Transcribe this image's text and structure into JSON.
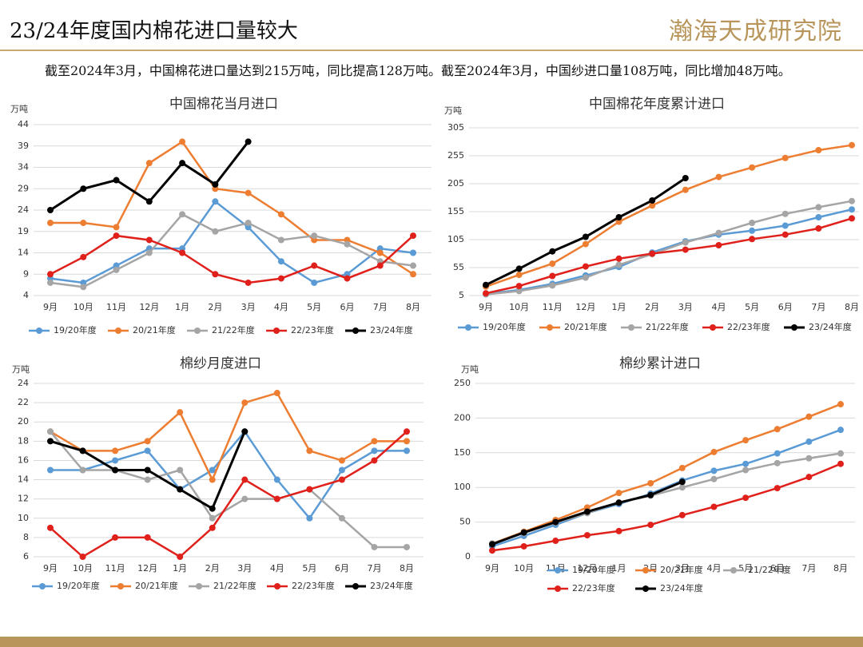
{
  "header": {
    "title": "23/24年度国内棉花进口量较大",
    "logo": "瀚海天成研究院",
    "text": "截至2024年3月，中国棉花进口量达到215万吨，同比提高128万吨。截至2024年3月，中国纱进口量108万吨，同比增加48万吨。"
  },
  "chart_data": [
    {
      "type": "line",
      "title": "中国棉花当月进口",
      "y_unit": "万吨",
      "grid": true,
      "legend": "bottom",
      "categories": [
        "9月",
        "10月",
        "11月",
        "12月",
        "1月",
        "2月",
        "3月",
        "4月",
        "5月",
        "6月",
        "7月",
        "8月"
      ],
      "ylim": [
        4,
        44
      ],
      "yticks": [
        4,
        9,
        14,
        19,
        24,
        29,
        34,
        39,
        44
      ],
      "series": [
        {
          "name": "19/20年度",
          "color": "#5b9bd5",
          "values": [
            8,
            7,
            11,
            15,
            15,
            26,
            20,
            12,
            7,
            9,
            15,
            14
          ]
        },
        {
          "name": "20/21年度",
          "color": "#ed7d31",
          "values": [
            21,
            21,
            20,
            35,
            40,
            29,
            28,
            23,
            17,
            17,
            14,
            9
          ]
        },
        {
          "name": "21/22年度",
          "color": "#a5a5a5",
          "values": [
            7,
            6,
            10,
            14,
            23,
            19,
            21,
            17,
            18,
            16,
            12,
            11
          ]
        },
        {
          "name": "22/23年度",
          "color": "#e0201b",
          "values": [
            9,
            13,
            18,
            17,
            14,
            9,
            7,
            8,
            11,
            8,
            11,
            18
          ]
        },
        {
          "name": "23/24年度",
          "color": "#000000",
          "values": [
            24,
            29,
            31,
            26,
            35,
            30,
            40,
            null,
            null,
            null,
            null,
            null
          ]
        }
      ]
    },
    {
      "type": "line",
      "title": "中国棉花年度累计进口",
      "y_unit": "万吨",
      "grid": true,
      "legend": "bottom",
      "categories": [
        "9月",
        "10月",
        "11月",
        "12月",
        "1月",
        "2月",
        "3月",
        "4月",
        "5月",
        "6月",
        "7月",
        "8月"
      ],
      "ylim": [
        5,
        305
      ],
      "yticks": [
        5,
        55,
        105,
        155,
        205,
        255,
        305
      ],
      "series": [
        {
          "name": "19/20年度",
          "color": "#5b9bd5",
          "values": [
            8,
            15,
            26,
            41,
            56,
            82,
            102,
            114,
            121,
            130,
            145,
            159
          ]
        },
        {
          "name": "20/21年度",
          "color": "#ed7d31",
          "values": [
            21,
            42,
            62,
            97,
            137,
            166,
            194,
            217,
            234,
            251,
            265,
            274
          ]
        },
        {
          "name": "21/22年度",
          "color": "#a5a5a5",
          "values": [
            7,
            13,
            23,
            37,
            60,
            79,
            100,
            117,
            135,
            151,
            163,
            174
          ]
        },
        {
          "name": "22/23年度",
          "color": "#e0201b",
          "values": [
            9,
            22,
            40,
            57,
            71,
            80,
            87,
            95,
            106,
            114,
            125,
            143
          ]
        },
        {
          "name": "23/24年度",
          "color": "#000000",
          "values": [
            24,
            53,
            84,
            110,
            145,
            175,
            215,
            null,
            null,
            null,
            null,
            null
          ]
        }
      ]
    },
    {
      "type": "line",
      "title": "棉纱月度进口",
      "y_unit": "万吨",
      "grid": true,
      "legend": "bottom",
      "categories": [
        "9月",
        "10月",
        "11月",
        "12月",
        "1月",
        "2月",
        "3月",
        "4月",
        "5月",
        "6月",
        "7月",
        "8月"
      ],
      "ylim": [
        6,
        24
      ],
      "yticks": [
        6,
        8,
        10,
        12,
        14,
        16,
        18,
        20,
        22,
        24
      ],
      "series": [
        {
          "name": "19/20年度",
          "color": "#5b9bd5",
          "values": [
            15,
            15,
            16,
            17,
            13,
            15,
            19,
            14,
            10,
            15,
            17,
            17
          ]
        },
        {
          "name": "20/21年度",
          "color": "#ed7d31",
          "values": [
            19,
            17,
            17,
            18,
            21,
            14,
            22,
            23,
            17,
            16,
            18,
            18
          ]
        },
        {
          "name": "21/22年度",
          "color": "#a5a5a5",
          "values": [
            19,
            15,
            15,
            14,
            15,
            10,
            12,
            12,
            13,
            10,
            7,
            7
          ]
        },
        {
          "name": "22/23年度",
          "color": "#e0201b",
          "values": [
            9,
            6,
            8,
            8,
            6,
            9,
            14,
            12,
            13,
            14,
            16,
            19
          ]
        },
        {
          "name": "23/24年度",
          "color": "#000000",
          "values": [
            18,
            17,
            15,
            15,
            13,
            11,
            19,
            null,
            null,
            null,
            null,
            null
          ]
        }
      ]
    },
    {
      "type": "line",
      "title": "棉纱累计进口",
      "y_unit": "万吨",
      "grid": true,
      "legend": "bottom",
      "categories": [
        "9月",
        "10月",
        "11月",
        "12月",
        "1月",
        "2月",
        "3月",
        "4月",
        "5月",
        "6月",
        "7月",
        "8月"
      ],
      "ylim": [
        0,
        250
      ],
      "yticks": [
        0,
        50,
        100,
        150,
        200,
        250
      ],
      "series": [
        {
          "name": "19/20年度",
          "color": "#5b9bd5",
          "values": [
            15,
            30,
            46,
            63,
            76,
            91,
            110,
            124,
            134,
            149,
            166,
            183
          ]
        },
        {
          "name": "20/21年度",
          "color": "#ed7d31",
          "values": [
            19,
            36,
            53,
            71,
            92,
            106,
            128,
            151,
            168,
            184,
            202,
            220
          ]
        },
        {
          "name": "21/22年度",
          "color": "#a5a5a5",
          "values": [
            19,
            34,
            49,
            63,
            78,
            88,
            100,
            112,
            125,
            135,
            142,
            149
          ]
        },
        {
          "name": "22/23年度",
          "color": "#e0201b",
          "values": [
            9,
            15,
            23,
            31,
            37,
            46,
            60,
            72,
            85,
            99,
            115,
            134
          ]
        },
        {
          "name": "23/24年度",
          "color": "#000000",
          "values": [
            18,
            35,
            50,
            65,
            78,
            89,
            108,
            null,
            null,
            null,
            null,
            null
          ]
        }
      ]
    }
  ]
}
